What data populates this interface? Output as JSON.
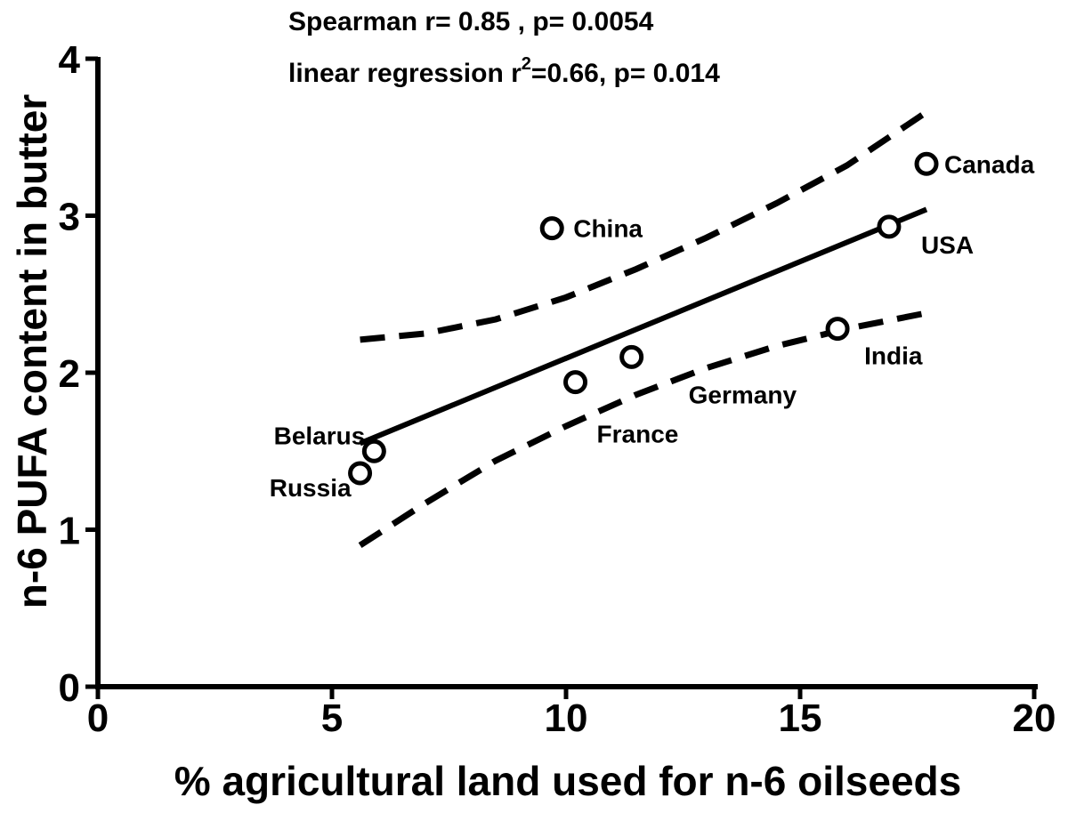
{
  "chart_data": {
    "type": "scatter",
    "title": "",
    "xlabel": "% agricultural land used for n-6 oilseeds",
    "ylabel": "n-6 PUFA content in butter",
    "xlim": [
      0,
      20
    ],
    "ylim": [
      0,
      4
    ],
    "x_ticks": [
      0,
      5,
      10,
      15,
      20
    ],
    "y_ticks": [
      0,
      1,
      2,
      3,
      4
    ],
    "x_tick_labels": [
      "0",
      "5",
      "10",
      "15",
      "20"
    ],
    "y_tick_labels": [
      "0",
      "1",
      "2",
      "3",
      "4"
    ],
    "grid": false,
    "annotations": {
      "spearman": "Spearman r= 0.85 , p= 0.0054",
      "regression_prefix": "linear regression r",
      "regression_sup": "2",
      "regression_suffix": "=0.66, p= 0.014"
    },
    "points": [
      {
        "label": "Russia",
        "x": 5.6,
        "y": 1.36
      },
      {
        "label": "Belarus",
        "x": 5.9,
        "y": 1.5
      },
      {
        "label": "China",
        "x": 9.7,
        "y": 2.92
      },
      {
        "label": "France",
        "x": 10.2,
        "y": 1.94
      },
      {
        "label": "Germany",
        "x": 11.4,
        "y": 2.1
      },
      {
        "label": "India",
        "x": 15.8,
        "y": 2.28
      },
      {
        "label": "USA",
        "x": 16.9,
        "y": 2.93
      },
      {
        "label": "Canada",
        "x": 17.7,
        "y": 3.33
      }
    ],
    "regression_line": {
      "x": [
        5.6,
        17.7
      ],
      "y": [
        1.55,
        3.04
      ]
    },
    "confidence_band_upper": {
      "x": [
        5.6,
        7,
        8.5,
        10,
        11.5,
        13,
        14.5,
        16,
        17.7
      ],
      "y": [
        2.21,
        2.25,
        2.34,
        2.48,
        2.66,
        2.86,
        3.08,
        3.32,
        3.66
      ]
    },
    "confidence_band_lower": {
      "x": [
        5.6,
        7,
        8.5,
        10,
        11.5,
        13,
        14.5,
        16,
        17.7
      ],
      "y": [
        0.9,
        1.17,
        1.44,
        1.66,
        1.86,
        2.03,
        2.17,
        2.28,
        2.38
      ]
    }
  }
}
